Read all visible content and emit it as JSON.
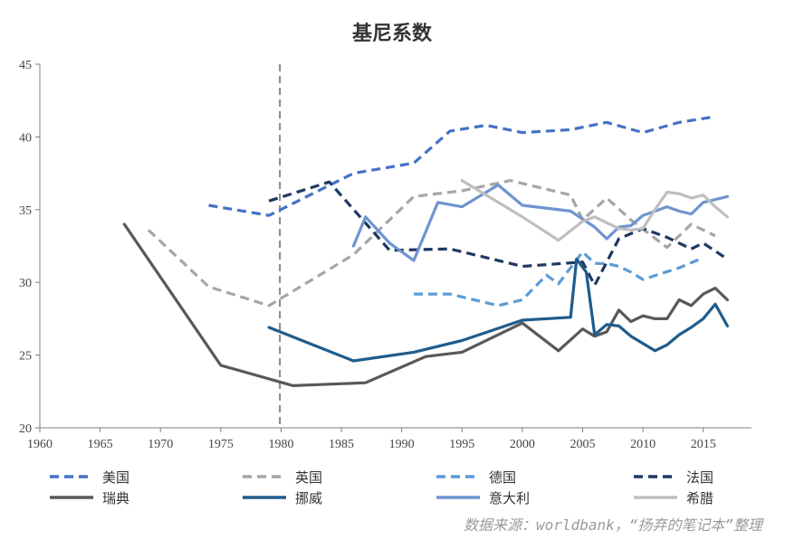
{
  "chart_data": {
    "type": "line",
    "title": "基尼系数",
    "xlabel": "",
    "ylabel": "",
    "xlim": [
      1960,
      2019
    ],
    "ylim": [
      20,
      45
    ],
    "x_ticks": [
      1960,
      1965,
      1970,
      1975,
      1980,
      1985,
      1990,
      1995,
      2000,
      2005,
      2010,
      2015
    ],
    "y_ticks": [
      20,
      25,
      30,
      35,
      40,
      45
    ],
    "grid": false,
    "reference_line": {
      "x": 1979.9,
      "style": "dashed",
      "color": "#888888"
    },
    "legend_position": "bottom",
    "source_text": "数据来源：worldbank，“扬弃的笔记本”整理",
    "series": [
      {
        "name": "美国",
        "color": "#4472c4",
        "style": "dashed",
        "x": [
          1974,
          1979,
          1986,
          1991,
          1994,
          1997,
          2000,
          2004,
          2007,
          2010,
          2013,
          2016
        ],
        "y": [
          35.3,
          34.6,
          37.5,
          38.2,
          40.4,
          40.8,
          40.3,
          40.5,
          41.0,
          40.3,
          41.0,
          41.4
        ]
      },
      {
        "name": "英国",
        "color": "#a6a6a6",
        "style": "dashed",
        "x": [
          1969,
          1974,
          1979,
          1986,
          1991,
          1995,
          1999,
          2004,
          2005,
          2007,
          2009,
          2012,
          2014,
          2016
        ],
        "y": [
          33.6,
          29.7,
          28.4,
          31.9,
          35.9,
          36.3,
          37.0,
          36.0,
          34.3,
          35.8,
          34.3,
          32.4,
          34.0,
          33.2
        ]
      },
      {
        "name": "德国",
        "color": "#5b9bd5",
        "style": "dashed",
        "x": [
          1991,
          1994,
          1998,
          2000,
          2002,
          2003,
          2005,
          2006,
          2007,
          2008,
          2009,
          2010,
          2013,
          2015
        ],
        "y": [
          29.2,
          29.2,
          28.4,
          28.8,
          30.5,
          29.9,
          32.1,
          31.3,
          31.3,
          31.1,
          30.7,
          30.2,
          31.0,
          31.7
        ]
      },
      {
        "name": "法国",
        "color": "#1f3864",
        "style": "dashed",
        "x": [
          1979,
          1984,
          1989,
          1994,
          2000,
          2005,
          2006,
          2008,
          2010,
          2012,
          2014,
          2015,
          2017
        ],
        "y": [
          35.6,
          36.9,
          32.2,
          32.3,
          31.1,
          31.4,
          29.8,
          33.0,
          33.7,
          33.1,
          32.3,
          32.7,
          31.6
        ]
      },
      {
        "name": "瑞典",
        "color": "#595959",
        "style": "solid",
        "x": [
          1967,
          1975,
          1981,
          1987,
          1992,
          1995,
          2000,
          2003,
          2005,
          2006,
          2007,
          2008,
          2009,
          2010,
          2011,
          2012,
          2013,
          2014,
          2015,
          2016,
          2017
        ],
        "y": [
          34.0,
          24.3,
          22.9,
          23.1,
          24.9,
          25.2,
          27.2,
          25.3,
          26.8,
          26.3,
          26.6,
          28.1,
          27.3,
          27.7,
          27.5,
          27.5,
          28.8,
          28.4,
          29.2,
          29.6,
          28.8
        ]
      },
      {
        "name": "挪威",
        "color": "#1f5c8b",
        "style": "solid",
        "x": [
          1979,
          1986,
          1991,
          1995,
          2000,
          2004,
          2004.5,
          2005.3,
          2006,
          2007,
          2008,
          2009,
          2010,
          2011,
          2012,
          2013,
          2014,
          2015,
          2016,
          2017
        ],
        "y": [
          26.9,
          24.6,
          25.2,
          26.0,
          27.4,
          27.6,
          31.6,
          30.7,
          26.4,
          27.1,
          27.0,
          26.3,
          25.8,
          25.3,
          25.7,
          26.4,
          26.9,
          27.5,
          28.5,
          27.0
        ]
      },
      {
        "name": "意大利",
        "color": "#6f94d0",
        "style": "solid",
        "x": [
          1986,
          1987,
          1989,
          1991,
          1993,
          1995,
          1998,
          2000,
          2004,
          2006,
          2007,
          2008,
          2009,
          2010,
          2012,
          2013,
          2014,
          2015,
          2017
        ],
        "y": [
          32.5,
          34.5,
          32.7,
          31.5,
          35.5,
          35.2,
          36.7,
          35.3,
          34.9,
          33.8,
          33.0,
          33.8,
          33.9,
          34.6,
          35.2,
          34.9,
          34.7,
          35.5,
          35.9
        ]
      },
      {
        "name": "希腊",
        "color": "#bfbfbf",
        "style": "solid",
        "x": [
          1995,
          2000,
          2003,
          2005,
          2006,
          2007,
          2008,
          2009,
          2010,
          2011,
          2012,
          2013,
          2014,
          2015,
          2016,
          2017
        ],
        "y": [
          37.0,
          34.5,
          32.9,
          34.2,
          34.5,
          34.1,
          33.7,
          33.6,
          33.7,
          35.0,
          36.2,
          36.1,
          35.8,
          36.0,
          35.2,
          34.5
        ]
      }
    ]
  }
}
